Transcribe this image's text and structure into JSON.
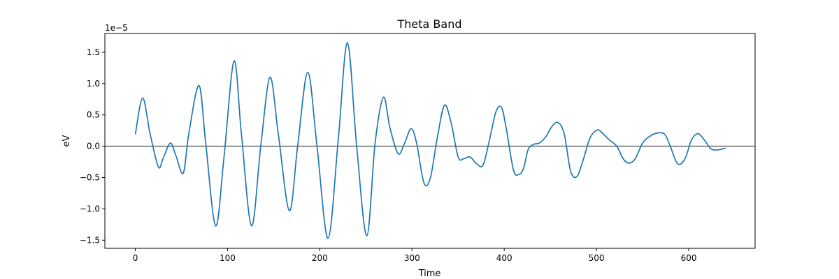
{
  "chart_data": {
    "type": "line",
    "title": "Theta Band",
    "xlabel": "Time",
    "ylabel": "eV",
    "y_scale_label": "1e−5",
    "xlim": [
      -33,
      672
    ],
    "ylim": [
      -1.63,
      1.8
    ],
    "x_ticks": [
      0,
      100,
      200,
      300,
      400,
      500,
      600
    ],
    "x_tick_labels": [
      "0",
      "100",
      "200",
      "300",
      "400",
      "500",
      "600"
    ],
    "y_ticks": [
      -1.5,
      -1.0,
      -0.5,
      0.0,
      0.5,
      1.0,
      1.5
    ],
    "y_tick_labels": [
      "−1.5",
      "−1.0",
      "−0.5",
      "0.0",
      "0.5",
      "1.0",
      "1.5"
    ],
    "grid": false,
    "zero_line": {
      "y": 0,
      "color": "#666666"
    },
    "series": [
      {
        "color": "#1f77b4",
        "x": [
          0,
          8,
          16,
          25,
          30,
          38,
          44,
          52,
          58,
          69,
          76,
          87,
          96,
          107,
          115,
          126,
          136,
          146,
          155,
          167,
          176,
          187,
          197,
          209,
          220,
          230,
          240,
          251,
          260,
          269,
          276,
          285,
          292,
          299,
          305,
          313,
          320,
          327,
          335,
          342,
          350,
          356,
          363,
          370,
          377,
          384,
          391,
          397,
          402,
          410,
          416,
          421,
          426,
          432,
          438,
          445,
          451,
          458,
          465,
          472,
          479,
          486,
          493,
          501,
          507,
          514,
          522,
          529,
          535,
          542,
          550,
          558,
          566,
          574,
          580,
          588,
          596,
          603,
          610,
          617,
          624,
          631,
          640
        ],
        "y": [
          0.19,
          0.77,
          0.2,
          -0.33,
          -0.2,
          0.05,
          -0.15,
          -0.43,
          0.2,
          0.97,
          0.1,
          -1.27,
          -0.2,
          1.36,
          0.2,
          -1.27,
          0.0,
          1.1,
          0.2,
          -1.03,
          0.0,
          1.18,
          0.0,
          -1.47,
          0.1,
          1.65,
          0.0,
          -1.43,
          0.05,
          0.78,
          0.3,
          -0.12,
          0.05,
          0.28,
          0.05,
          -0.59,
          -0.5,
          0.1,
          0.65,
          0.4,
          -0.17,
          -0.2,
          -0.17,
          -0.28,
          -0.3,
          0.1,
          0.55,
          0.62,
          0.3,
          -0.38,
          -0.45,
          -0.35,
          -0.05,
          0.03,
          0.05,
          0.15,
          0.3,
          0.38,
          0.2,
          -0.4,
          -0.48,
          -0.2,
          0.13,
          0.26,
          0.2,
          0.1,
          0.0,
          -0.2,
          -0.27,
          -0.2,
          0.05,
          0.16,
          0.21,
          0.19,
          0.0,
          -0.28,
          -0.2,
          0.1,
          0.2,
          0.1,
          -0.04,
          -0.06,
          -0.03
        ]
      }
    ]
  }
}
